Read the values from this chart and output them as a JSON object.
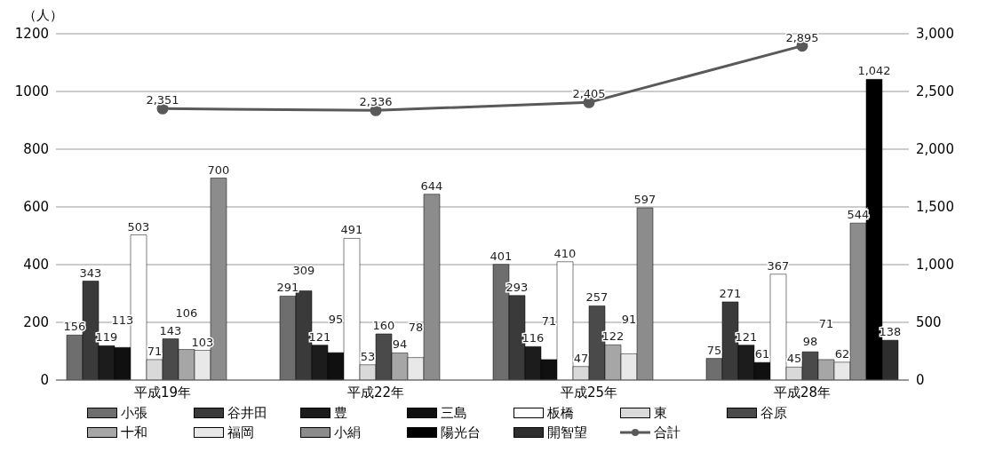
{
  "chart_data": {
    "type": "bar",
    "ylabel": "（人）",
    "categories": [
      "平成19年",
      "平成22年",
      "平成25年",
      "平成28年"
    ],
    "series": [
      {
        "name": "小張",
        "color": "#6e6e6e",
        "values": [
          156,
          291,
          401,
          75
        ]
      },
      {
        "name": "谷井田",
        "color": "#3a3a3a",
        "values": [
          343,
          309,
          293,
          271
        ]
      },
      {
        "name": "豊",
        "color": "#1c1c1c",
        "values": [
          119,
          121,
          116,
          121
        ]
      },
      {
        "name": "三島",
        "color": "#101010",
        "values": [
          113,
          95,
          71,
          61
        ]
      },
      {
        "name": "板橋",
        "color": "#ffffff",
        "values": [
          503,
          491,
          410,
          367
        ]
      },
      {
        "name": "東",
        "color": "#d9d9d9",
        "values": [
          71,
          53,
          47,
          45
        ]
      },
      {
        "name": "谷原",
        "color": "#4a4a4a",
        "values": [
          143,
          160,
          257,
          98
        ]
      },
      {
        "name": "十和",
        "color": "#a6a6a6",
        "values": [
          106,
          94,
          122,
          71
        ]
      },
      {
        "name": "福岡",
        "color": "#e8e8e8",
        "values": [
          103,
          78,
          91,
          62
        ]
      },
      {
        "name": "小絹",
        "color": "#8c8c8c",
        "values": [
          700,
          644,
          597,
          544
        ]
      },
      {
        "name": "陽光台",
        "color": "#000000",
        "values": [
          null,
          null,
          null,
          1042
        ],
        "value_labels": [
          null,
          null,
          null,
          "1,042"
        ]
      },
      {
        "name": "開智望",
        "color": "#2e2e2e",
        "values": [
          null,
          null,
          null,
          138
        ]
      },
      {
        "name": "合計",
        "type": "line",
        "axis": "y2",
        "color": "#595959",
        "values": [
          2351,
          2336,
          2405,
          2895
        ],
        "value_labels": [
          "2,351",
          "2,336",
          "2,405",
          "2,895"
        ]
      }
    ],
    "ylim": [
      0,
      1200
    ],
    "yticks": [
      0,
      200,
      400,
      600,
      800,
      1000,
      1200
    ],
    "y2lim": [
      0,
      3000
    ],
    "y2ticks": [
      0,
      {
        "value": 500,
        "label": "500"
      },
      {
        "value": 1000,
        "label": "1,000"
      },
      {
        "value": 1500,
        "label": "1,500"
      },
      {
        "value": 2000,
        "label": "2,000"
      },
      {
        "value": 2500,
        "label": "2,500"
      },
      {
        "value": 3000,
        "label": "3,000"
      }
    ],
    "grid": "y",
    "legend": "bottom",
    "data_labels": true,
    "marker": "circle"
  }
}
